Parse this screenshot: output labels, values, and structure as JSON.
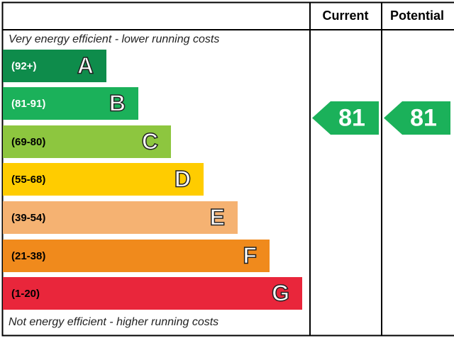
{
  "header": {
    "current": "Current",
    "potential": "Potential"
  },
  "top_note": "Very energy efficient - lower running costs",
  "bottom_note": "Not energy efficient - higher running costs",
  "bands": [
    {
      "range": "(92+)",
      "letter": "A",
      "color": "#0e8c4b",
      "text_color": "#ffffff"
    },
    {
      "range": "(81-91)",
      "letter": "B",
      "color": "#1bb15a",
      "text_color": "#ffffff"
    },
    {
      "range": "(69-80)",
      "letter": "C",
      "color": "#8dc63f",
      "text_color": "#000000"
    },
    {
      "range": "(55-68)",
      "letter": "D",
      "color": "#ffcc00",
      "text_color": "#000000"
    },
    {
      "range": "(39-54)",
      "letter": "E",
      "color": "#f5b272",
      "text_color": "#000000"
    },
    {
      "range": "(21-38)",
      "letter": "F",
      "color": "#f08a1c",
      "text_color": "#000000"
    },
    {
      "range": "(1-20)",
      "letter": "G",
      "color": "#e9263b",
      "text_color": "#000000"
    }
  ],
  "current": {
    "value": "81",
    "color": "#1bb15a"
  },
  "potential": {
    "value": "81",
    "color": "#1bb15a"
  }
}
